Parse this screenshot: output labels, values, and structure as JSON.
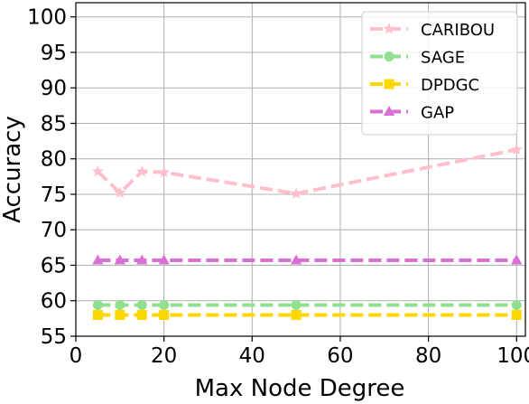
{
  "chart_data": {
    "type": "line",
    "xlabel": "Max Node Degree",
    "ylabel": "Accuracy",
    "x": [
      5,
      10,
      15,
      20,
      50,
      100
    ],
    "xlim": [
      0,
      102
    ],
    "ylim": [
      55,
      102
    ],
    "xticks": [
      0,
      20,
      40,
      60,
      80,
      100
    ],
    "yticks": [
      55,
      60,
      65,
      70,
      75,
      80,
      85,
      90,
      95,
      100
    ],
    "grid": true,
    "legend_position": "top-right",
    "series": [
      {
        "name": "CARIBOU",
        "values": [
          78.2,
          75.2,
          78.2,
          78.1,
          75.1,
          81.3
        ],
        "color": "#ffc0cb",
        "marker": "star"
      },
      {
        "name": "SAGE",
        "values": [
          59.4,
          59.4,
          59.4,
          59.4,
          59.4,
          59.4
        ],
        "color": "#90e090",
        "marker": "circle"
      },
      {
        "name": "DPDGC",
        "values": [
          58.0,
          58.0,
          58.0,
          58.0,
          58.0,
          58.0
        ],
        "color": "#ffd700",
        "marker": "square"
      },
      {
        "name": "GAP",
        "values": [
          65.7,
          65.7,
          65.7,
          65.7,
          65.7,
          65.7
        ],
        "color": "#da70d6",
        "marker": "triangle"
      }
    ]
  }
}
